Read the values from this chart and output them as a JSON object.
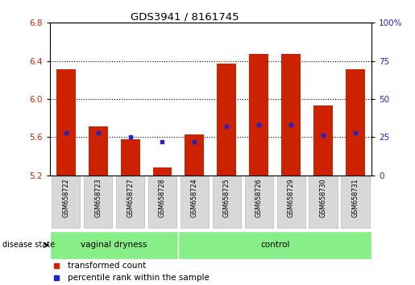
{
  "title": "GDS3941 / 8161745",
  "samples": [
    "GSM658722",
    "GSM658723",
    "GSM658727",
    "GSM658728",
    "GSM658724",
    "GSM658725",
    "GSM658726",
    "GSM658729",
    "GSM658730",
    "GSM658731"
  ],
  "groups": [
    "vaginal dryness",
    "vaginal dryness",
    "vaginal dryness",
    "vaginal dryness",
    "control",
    "control",
    "control",
    "control",
    "control",
    "control"
  ],
  "transformed_count": [
    6.31,
    5.71,
    5.58,
    5.28,
    5.63,
    6.37,
    6.47,
    6.47,
    5.93,
    6.31
  ],
  "percentile_rank": [
    28,
    28,
    25,
    22,
    22,
    32,
    33,
    33,
    26,
    28
  ],
  "base_value": 5.2,
  "ylim_left": [
    5.2,
    6.8
  ],
  "ylim_right": [
    0,
    100
  ],
  "yticks_left": [
    5.2,
    5.6,
    6.0,
    6.4,
    6.8
  ],
  "yticks_right": [
    0,
    25,
    50,
    75,
    100
  ],
  "bar_color": "#cc2200",
  "blue_color": "#2222cc",
  "bg_color": "#ffffff",
  "legend_red": "transformed count",
  "legend_blue": "percentile rank within the sample",
  "group_boundary": 4,
  "n_samples": 10,
  "bar_width": 0.6,
  "group_green": "#88ee88"
}
